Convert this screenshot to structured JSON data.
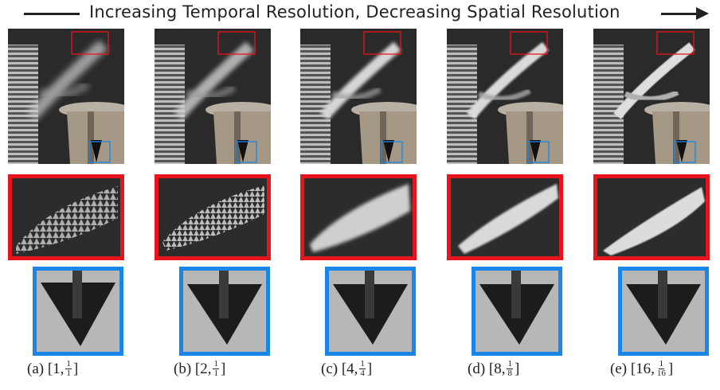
{
  "header": {
    "text": "Increasing Temporal Resolution, Decreasing Spatial Resolution"
  },
  "panels": [
    {
      "caption_prefix": "(a) [1,",
      "num": "1",
      "den": "1",
      "caption_suffix": "]"
    },
    {
      "caption_prefix": "(b) [2,",
      "num": "1",
      "den": "1",
      "caption_suffix": "]"
    },
    {
      "caption_prefix": "(c) [4,",
      "num": "1",
      "den": "4",
      "caption_suffix": "]"
    },
    {
      "caption_prefix": "(d) [8,",
      "num": "1",
      "den": "8",
      "caption_suffix": "]"
    },
    {
      "caption_prefix": "(e) [16,",
      "num": "1",
      "den": "16",
      "caption_suffix": "]"
    }
  ],
  "colors": {
    "red_box": "#e8141c",
    "blue_box": "#1a86e8",
    "text": "#222222"
  }
}
